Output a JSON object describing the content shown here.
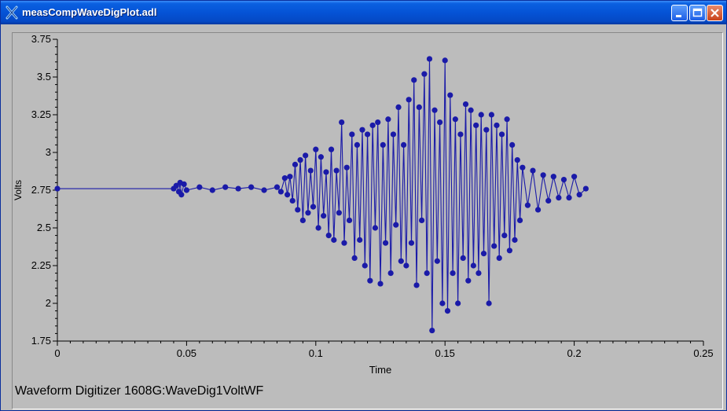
{
  "window": {
    "title": "measCompWaveDigPlot.adl",
    "icon": "x-cross-icon",
    "controls": {
      "minimize": "minimize-icon",
      "maximize": "maximize-icon",
      "close": "close-icon"
    }
  },
  "footer_label": "Waveform Digitizer 1608G:WaveDig1VoltWF",
  "colors": {
    "series": "#1a1aa8",
    "background": "#bcbcbc",
    "titlebar": "#0553d6"
  },
  "chart_data": {
    "type": "line",
    "title": "",
    "xlabel": "Time",
    "ylabel": "Volts",
    "xlim": [
      0,
      0.25
    ],
    "ylim": [
      1.75,
      3.75
    ],
    "xticks": [
      "0",
      "0.05",
      "0.1",
      "0.15",
      "0.2",
      "0.25"
    ],
    "yticks": [
      "1.75",
      "2",
      "2.25",
      "2.5",
      "2.75",
      "3",
      "3.25",
      "3.5",
      "3.75"
    ],
    "grid": false,
    "markers": true,
    "series": [
      {
        "x": [
          0.0,
          0.045,
          0.046,
          0.047,
          0.0475,
          0.048,
          0.049,
          0.05,
          0.055,
          0.06,
          0.065,
          0.07,
          0.075,
          0.08,
          0.085,
          0.0865,
          0.088,
          0.089,
          0.09,
          0.091,
          0.092,
          0.093,
          0.094,
          0.095,
          0.096,
          0.097,
          0.098,
          0.099,
          0.1,
          0.101,
          0.102,
          0.103,
          0.104,
          0.105,
          0.106,
          0.107,
          0.108,
          0.109,
          0.11,
          0.111,
          0.112,
          0.113,
          0.114,
          0.115,
          0.116,
          0.117,
          0.118,
          0.119,
          0.12,
          0.121,
          0.122,
          0.123,
          0.124,
          0.125,
          0.126,
          0.127,
          0.128,
          0.129,
          0.13,
          0.131,
          0.132,
          0.133,
          0.134,
          0.135,
          0.136,
          0.137,
          0.138,
          0.139,
          0.14,
          0.141,
          0.142,
          0.143,
          0.144,
          0.145,
          0.146,
          0.147,
          0.148,
          0.149,
          0.15,
          0.151,
          0.152,
          0.153,
          0.154,
          0.155,
          0.156,
          0.157,
          0.158,
          0.159,
          0.16,
          0.161,
          0.162,
          0.163,
          0.164,
          0.165,
          0.166,
          0.167,
          0.168,
          0.169,
          0.17,
          0.171,
          0.172,
          0.173,
          0.174,
          0.175,
          0.176,
          0.177,
          0.178,
          0.179,
          0.18,
          0.182,
          0.184,
          0.186,
          0.188,
          0.19,
          0.192,
          0.194,
          0.196,
          0.198,
          0.2,
          0.202,
          0.2045
        ],
        "values": [
          2.76,
          2.76,
          2.78,
          2.74,
          2.8,
          2.72,
          2.79,
          2.75,
          2.77,
          2.75,
          2.77,
          2.76,
          2.77,
          2.75,
          2.77,
          2.74,
          2.83,
          2.72,
          2.84,
          2.68,
          2.92,
          2.62,
          2.95,
          2.55,
          2.98,
          2.6,
          2.88,
          2.64,
          3.02,
          2.5,
          2.97,
          2.58,
          2.87,
          2.45,
          3.02,
          2.42,
          2.88,
          2.6,
          3.2,
          2.4,
          2.9,
          2.55,
          3.12,
          2.3,
          3.05,
          2.42,
          3.15,
          2.25,
          3.12,
          2.15,
          3.18,
          2.5,
          3.2,
          2.13,
          3.05,
          2.4,
          3.22,
          2.2,
          3.12,
          2.52,
          3.3,
          2.28,
          3.05,
          2.25,
          3.35,
          2.4,
          3.48,
          2.12,
          3.3,
          2.55,
          3.52,
          2.2,
          3.62,
          1.82,
          3.28,
          2.28,
          3.2,
          2.0,
          3.61,
          1.95,
          3.38,
          2.2,
          3.22,
          2.0,
          3.12,
          2.3,
          3.32,
          2.15,
          3.28,
          2.25,
          3.18,
          2.2,
          3.25,
          2.33,
          3.15,
          2.0,
          3.25,
          2.38,
          3.18,
          2.3,
          3.12,
          2.45,
          3.22,
          2.35,
          3.05,
          2.42,
          2.95,
          2.55,
          2.9,
          2.65,
          2.88,
          2.62,
          2.85,
          2.68,
          2.84,
          2.7,
          2.82,
          2.7,
          2.84,
          2.72,
          2.76
        ]
      }
    ]
  }
}
